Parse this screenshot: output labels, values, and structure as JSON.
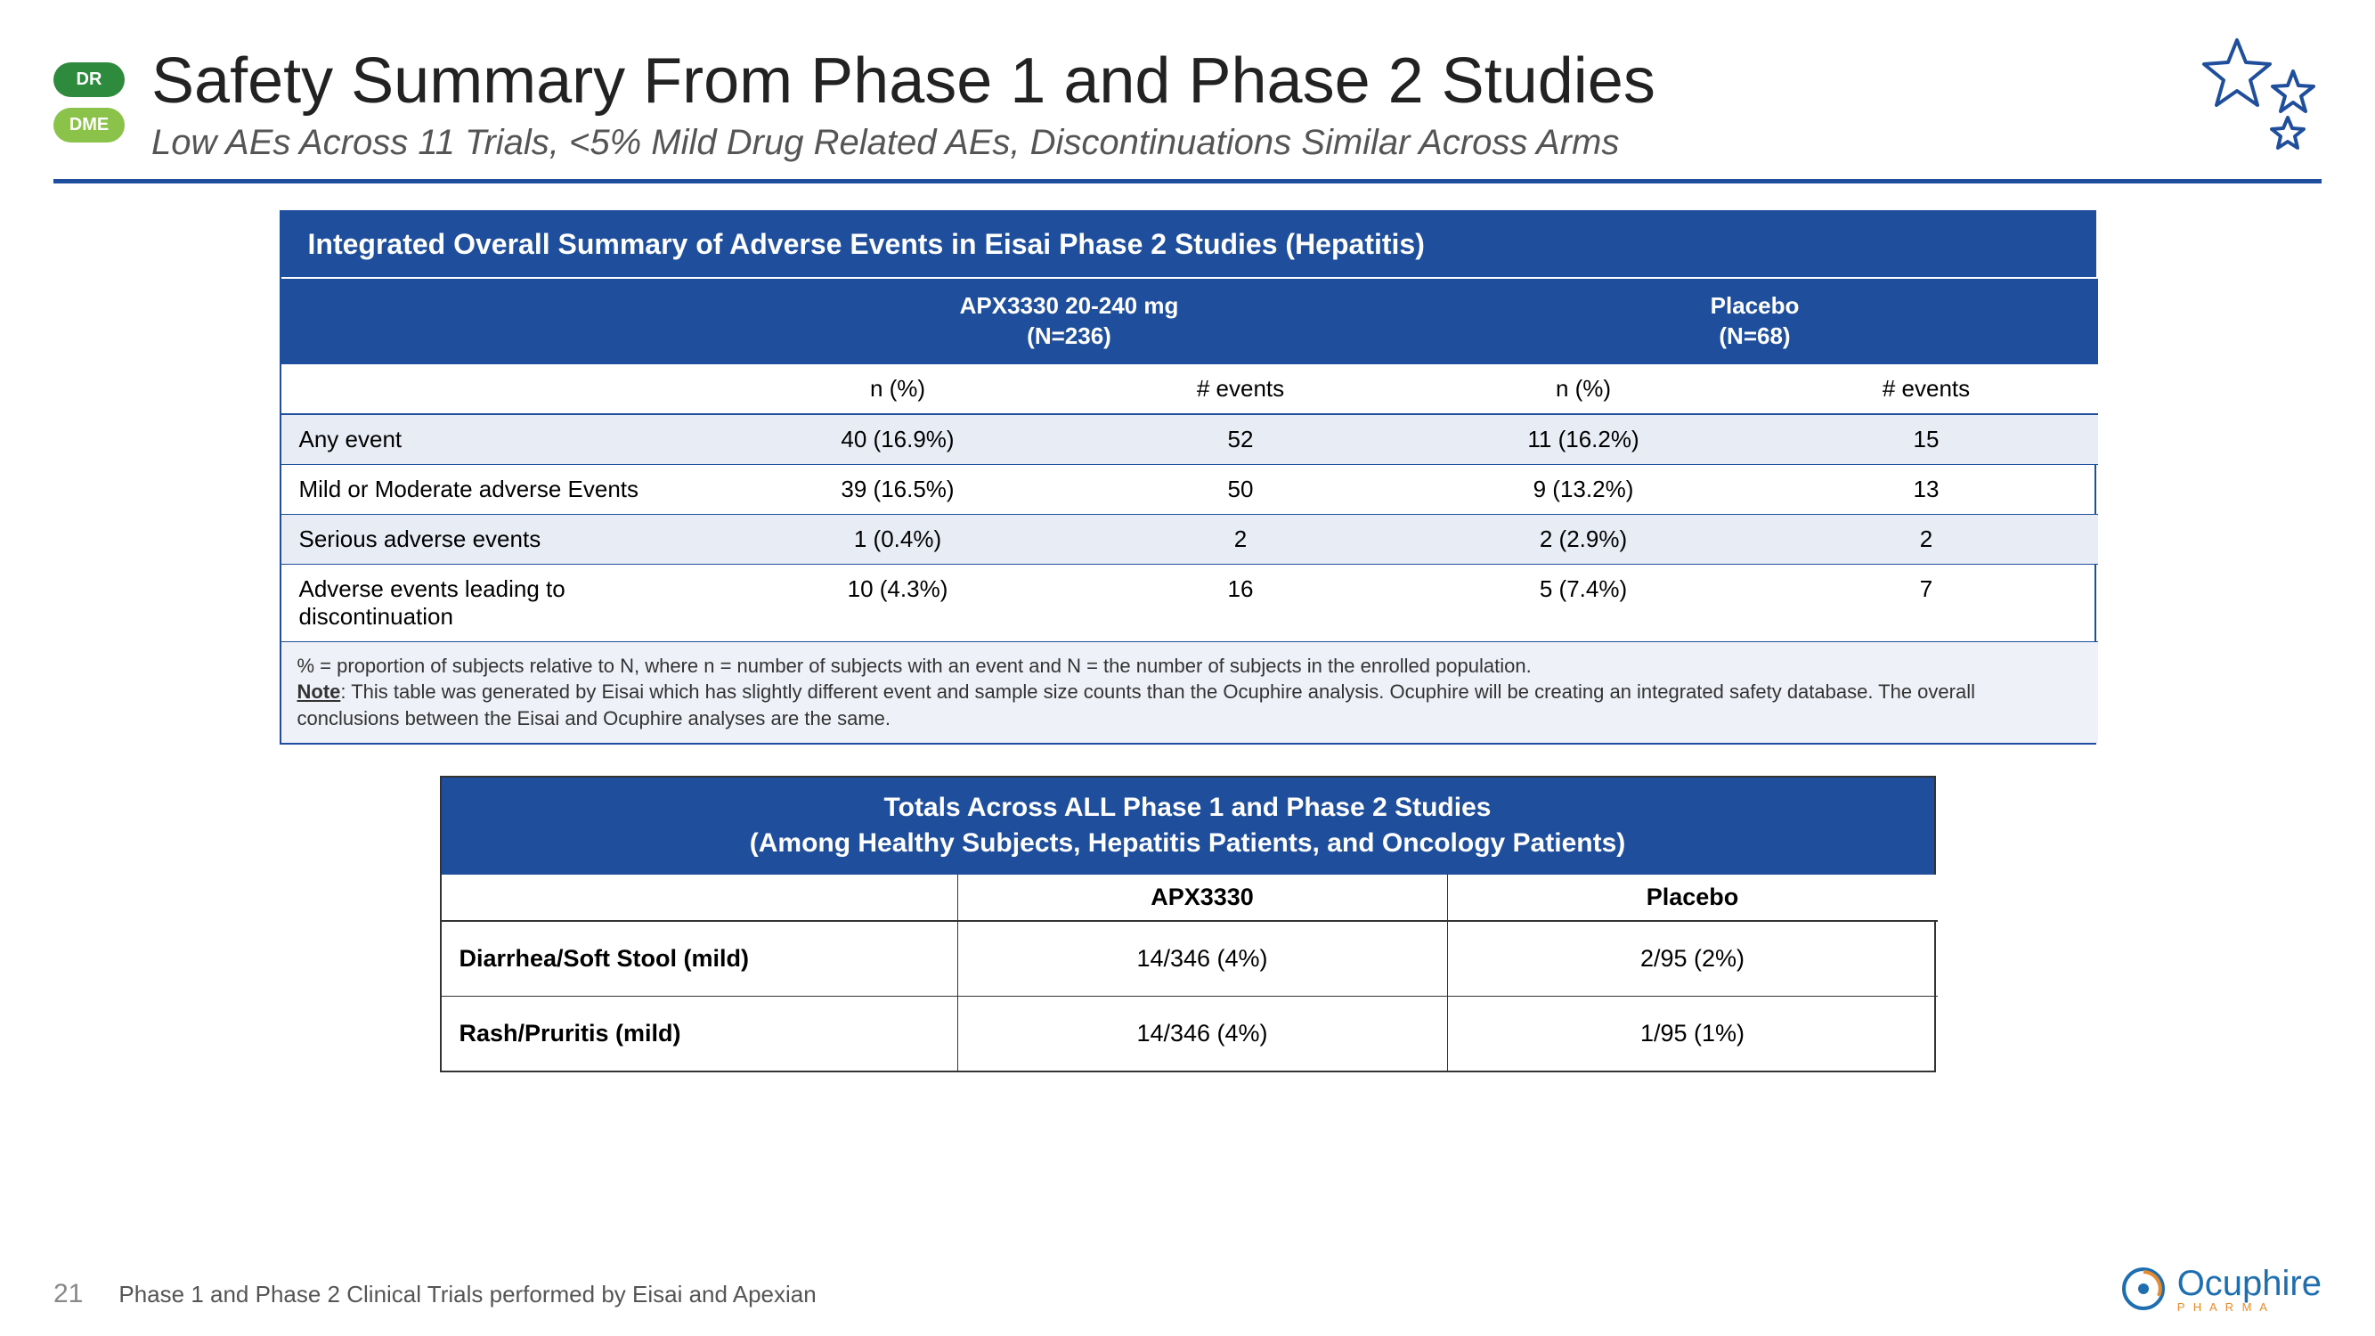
{
  "badges": {
    "dr": "DR",
    "dme": "DME"
  },
  "title": "Safety Summary From Phase 1 and Phase 2 Studies",
  "subtitle": "Low AEs Across 11 Trials, <5% Mild Drug Related AEs, Discontinuations Similar Across Arms",
  "colors": {
    "header_blue": "#1f4e9c",
    "badge_dr": "#2e8b3d",
    "badge_dme": "#8bc34a",
    "alt_row": "#e8ecf4",
    "note_bg": "#eef1f7",
    "logo_blue": "#1f6fb0",
    "logo_orange": "#e88b2d"
  },
  "stars": {
    "fill": "none",
    "stroke": "#1f4e9c",
    "stroke_width": 4
  },
  "table1": {
    "title": "Integrated Overall Summary of Adverse Events in Eisai Phase 2 Studies (Hepatitis)",
    "group_headers": {
      "apx": "APX3330 20-240 mg\n(N=236)",
      "placebo": "Placebo\n(N=68)"
    },
    "sub_headers": [
      "n (%)",
      "# events",
      "n (%)",
      "# events"
    ],
    "rows": [
      {
        "label": "Any event",
        "c": [
          "40 (16.9%)",
          "52",
          "11 (16.2%)",
          "15"
        ],
        "alt": true
      },
      {
        "label": "Mild or Moderate adverse Events",
        "c": [
          "39 (16.5%)",
          "50",
          "9 (13.2%)",
          "13"
        ],
        "alt": false
      },
      {
        "label": "Serious adverse events",
        "c": [
          "1 (0.4%)",
          "2",
          "2 (2.9%)",
          "2"
        ],
        "alt": true
      },
      {
        "label": "Adverse events leading to discontinuation",
        "c": [
          "10 (4.3%)",
          "16",
          "5 (7.4%)",
          "7"
        ],
        "alt": false
      }
    ],
    "note_prefix": "% = proportion of subjects relative to N, where n = number of subjects with an event and N = the number of subjects in the enrolled population.",
    "note_label": "Note",
    "note_body": ": This table was generated by Eisai which has slightly different event and sample size counts than the Ocuphire analysis. Ocuphire will be creating an integrated safety database. The overall conclusions between the Eisai and Ocuphire analyses are the same."
  },
  "table2": {
    "title_l1": "Totals Across ALL Phase 1 and Phase 2 Studies",
    "title_l2": "(Among Healthy Subjects, Hepatitis Patients, and Oncology Patients)",
    "headers": [
      "",
      "APX3330",
      "Placebo"
    ],
    "rows": [
      {
        "label": "Diarrhea/Soft Stool  (mild)",
        "c": [
          "14/346 (4%)",
          "2/95 (2%)"
        ]
      },
      {
        "label": "Rash/Pruritis (mild)",
        "c": [
          "14/346 (4%)",
          "1/95 (1%)"
        ]
      }
    ]
  },
  "footer": {
    "page": "21",
    "text": "Phase 1 and Phase 2 Clinical Trials performed by Eisai and Apexian"
  },
  "logo": {
    "name": "Ocuphire",
    "sub": "P H A R M A"
  }
}
